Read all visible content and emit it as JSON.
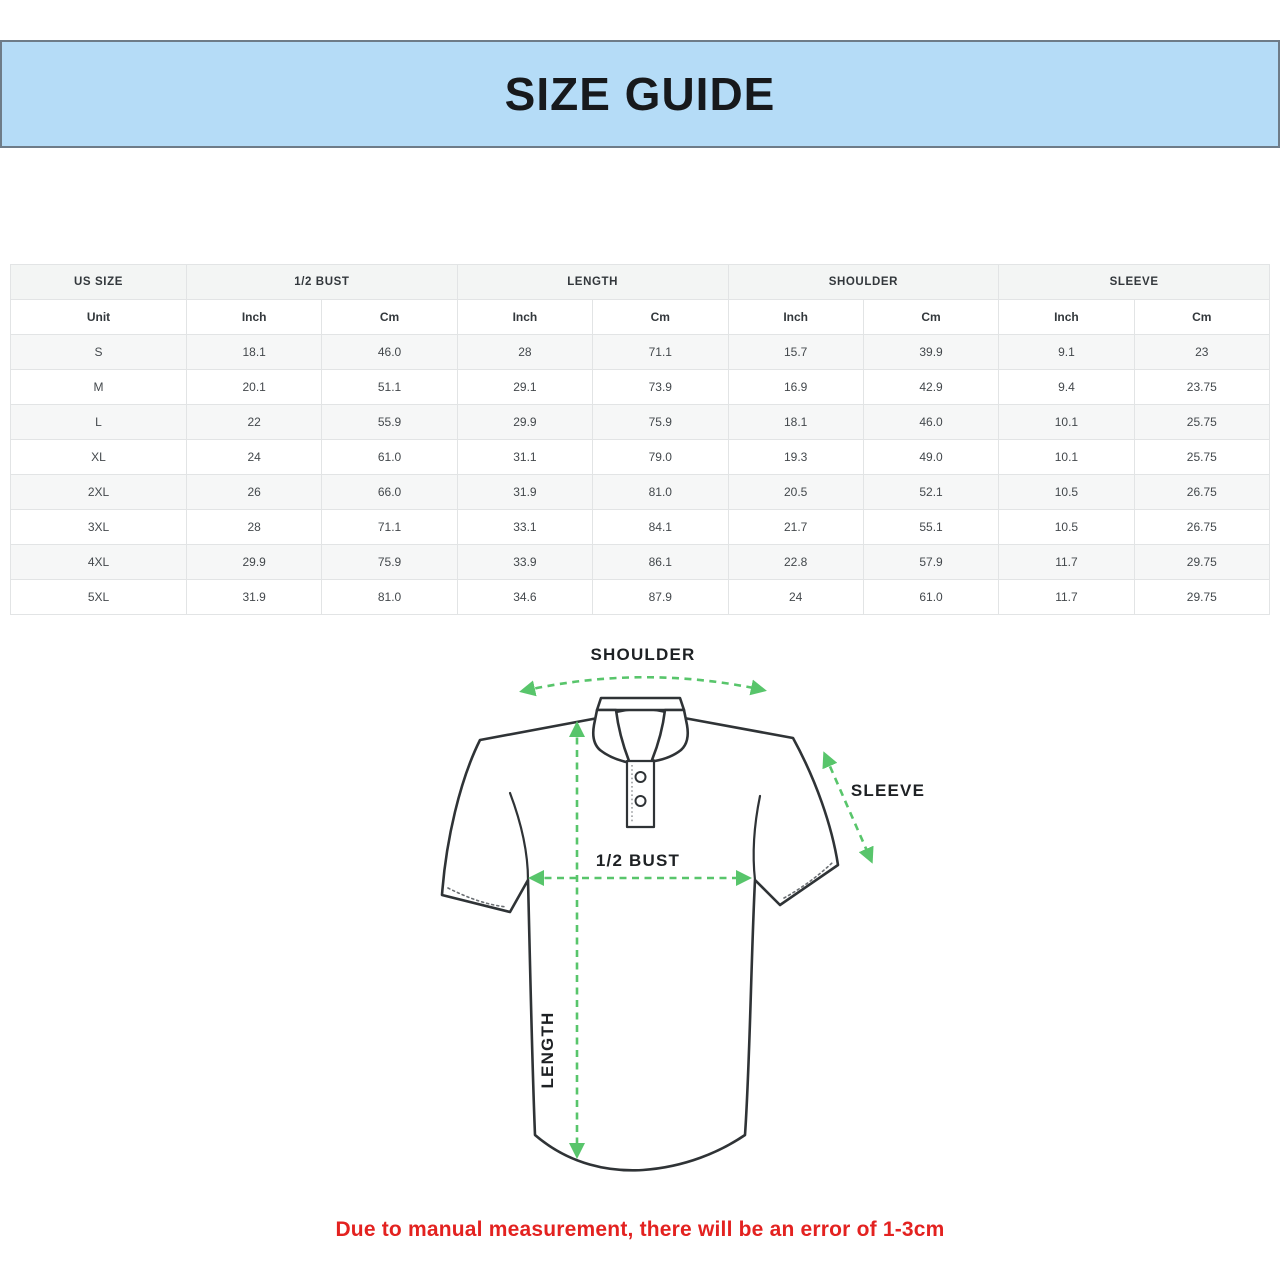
{
  "banner": {
    "title": "SIZE GUIDE"
  },
  "colors": {
    "banner-bg": "#b5dcf7",
    "banner-border": "#6e7c88",
    "title-color": "#17191c",
    "table-border": "#e2e4e5",
    "head-bg": "#f3f5f4",
    "stripe-bg": "#f6f7f7",
    "head-text": "#33383c",
    "table-text": "#43484c",
    "shirt-outline": "#2f3336",
    "stitch-gray": "#6b6f73",
    "arrow-green": "#58c56b",
    "label-color": "#1e2124",
    "note-red": "#e32220"
  },
  "table": {
    "group_headers": [
      {
        "label": "US SIZE",
        "span": 1
      },
      {
        "label": "1/2 BUST",
        "span": 2
      },
      {
        "label": "LENGTH",
        "span": 2
      },
      {
        "label": "SHOULDER",
        "span": 2
      },
      {
        "label": "SLEEVE",
        "span": 2
      }
    ],
    "unit_row": [
      "Unit",
      "Inch",
      "Cm",
      "Inch",
      "Cm",
      "Inch",
      "Cm",
      "Inch",
      "Cm"
    ],
    "rows": [
      [
        "S",
        "18.1",
        "46.0",
        "28",
        "71.1",
        "15.7",
        "39.9",
        "9.1",
        "23"
      ],
      [
        "M",
        "20.1",
        "51.1",
        "29.1",
        "73.9",
        "16.9",
        "42.9",
        "9.4",
        "23.75"
      ],
      [
        "L",
        "22",
        "55.9",
        "29.9",
        "75.9",
        "18.1",
        "46.0",
        "10.1",
        "25.75"
      ],
      [
        "XL",
        "24",
        "61.0",
        "31.1",
        "79.0",
        "19.3",
        "49.0",
        "10.1",
        "25.75"
      ],
      [
        "2XL",
        "26",
        "66.0",
        "31.9",
        "81.0",
        "20.5",
        "52.1",
        "10.5",
        "26.75"
      ],
      [
        "3XL",
        "28",
        "71.1",
        "33.1",
        "84.1",
        "21.7",
        "55.1",
        "10.5",
        "26.75"
      ],
      [
        "4XL",
        "29.9",
        "75.9",
        "33.9",
        "86.1",
        "22.8",
        "57.9",
        "11.7",
        "29.75"
      ],
      [
        "5XL",
        "31.9",
        "81.0",
        "34.6",
        "87.9",
        "24",
        "61.0",
        "11.7",
        "29.75"
      ]
    ]
  },
  "diagram": {
    "labels": {
      "shoulder": "SHOULDER",
      "sleeve": "SLEEVE",
      "half_bust": "1/2 BUST",
      "length": "LENGTH"
    }
  },
  "note": {
    "text": "Due to manual measurement, there will be an error of 1-3cm"
  }
}
